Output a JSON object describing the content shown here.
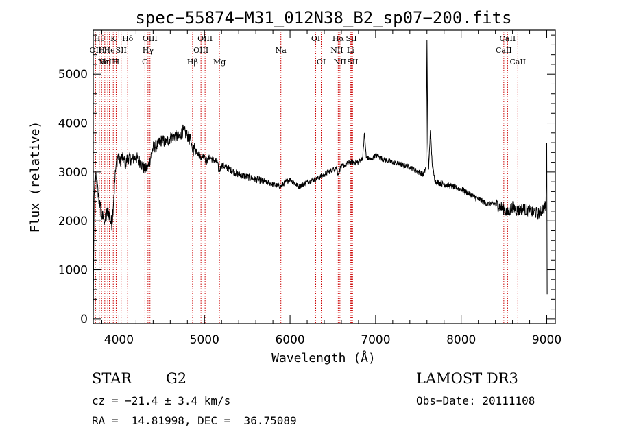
{
  "chart_data": {
    "type": "line",
    "title": "spec−55874−M31_012N38_B2_sp07−200.fits",
    "xlabel": "Wavelength (Å)",
    "ylabel": "Flux (relative)",
    "xlim": [
      3700,
      9100
    ],
    "ylim": [
      -100,
      5900
    ],
    "xticks": [
      4000,
      5000,
      6000,
      7000,
      8000,
      9000
    ],
    "yticks": [
      0,
      1000,
      2000,
      3000,
      4000,
      5000
    ],
    "series": [
      {
        "name": "flux",
        "x": [
          3700,
          3705,
          3710,
          3720,
          3740,
          3760,
          3780,
          3800,
          3820,
          3840,
          3860,
          3880,
          3900,
          3920,
          3940,
          3960,
          3970,
          3990,
          4010,
          4030,
          4060,
          4080,
          4100,
          4150,
          4200,
          4250,
          4300,
          4340,
          4400,
          4450,
          4500,
          4550,
          4600,
          4650,
          4700,
          4750,
          4800,
          4850,
          4861,
          4880,
          4920,
          4960,
          5000,
          5020,
          5060,
          5100,
          5150,
          5170,
          5200,
          5300,
          5400,
          5500,
          5600,
          5700,
          5800,
          5890,
          5950,
          6000,
          6100,
          6200,
          6300,
          6350,
          6400,
          6450,
          6500,
          6540,
          6563,
          6590,
          6650,
          6700,
          6750,
          6800,
          6850,
          6870,
          6890,
          6950,
          7000,
          7100,
          7200,
          7300,
          7400,
          7500,
          7560,
          7590,
          7600,
          7610,
          7620,
          7640,
          7660,
          7680,
          7700,
          7800,
          7900,
          8000,
          8100,
          8200,
          8300,
          8400,
          8500,
          8542,
          8600,
          8662,
          8700,
          8800,
          8900,
          8960,
          8990,
          9000,
          9005
        ],
        "values": [
          0,
          1300,
          2500,
          2900,
          2800,
          2500,
          2300,
          2100,
          2050,
          2000,
          2150,
          2200,
          2000,
          1950,
          2500,
          3000,
          3200,
          3350,
          3200,
          3300,
          3250,
          3150,
          3300,
          3250,
          3300,
          3200,
          3050,
          3100,
          3500,
          3550,
          3650,
          3600,
          3700,
          3750,
          3700,
          3850,
          3750,
          3600,
          3400,
          3500,
          3400,
          3300,
          3350,
          3200,
          3300,
          3250,
          3200,
          3000,
          3150,
          3050,
          2950,
          2900,
          2850,
          2800,
          2750,
          2700,
          2800,
          2850,
          2700,
          2800,
          2850,
          2900,
          2950,
          3000,
          3050,
          3100,
          2950,
          3100,
          3150,
          3200,
          3200,
          3200,
          3300,
          3800,
          3300,
          3250,
          3350,
          3250,
          3200,
          3150,
          3100,
          3000,
          2950,
          3100,
          5700,
          3600,
          3050,
          3850,
          3200,
          2950,
          2800,
          2750,
          2700,
          2650,
          2550,
          2450,
          2350,
          2350,
          2250,
          2150,
          2300,
          2200,
          2250,
          2200,
          2150,
          2250,
          2300,
          3600,
          500
        ]
      }
    ],
    "lines": [
      {
        "wl": 3727,
        "label": "OII",
        "row": 1
      },
      {
        "wl": 3771,
        "label": "Hθ",
        "row": 0
      },
      {
        "wl": 3798,
        "label": "H",
        "row": 1
      },
      {
        "wl": 3835,
        "label": "Hη",
        "row": 2
      },
      {
        "wl": 3869,
        "label": "NeIII",
        "row": 2
      },
      {
        "wl": 3889,
        "label": "He",
        "row": 1
      },
      {
        "wl": 3934,
        "label": "K",
        "row": 0
      },
      {
        "wl": 3968,
        "label": "H",
        "row": 2
      },
      {
        "wl": 4026,
        "label": "SII",
        "row": 1
      },
      {
        "wl": 4102,
        "label": "Hδ",
        "row": 0
      },
      {
        "wl": 4304,
        "label": "G",
        "row": 2
      },
      {
        "wl": 4340,
        "label": "Hγ",
        "row": 1
      },
      {
        "wl": 4363,
        "label": "OIII",
        "row": 0
      },
      {
        "wl": 4861,
        "label": "Hβ",
        "row": 2
      },
      {
        "wl": 4959,
        "label": "OIII",
        "row": 1
      },
      {
        "wl": 5007,
        "label": "OIII",
        "row": 0
      },
      {
        "wl": 5175,
        "label": "Mg",
        "row": 2
      },
      {
        "wl": 5893,
        "label": "Na",
        "row": 1
      },
      {
        "wl": 6300,
        "label": "OI",
        "row": 0
      },
      {
        "wl": 6364,
        "label": "OI",
        "row": 2
      },
      {
        "wl": 6548,
        "label": "NII",
        "row": 1
      },
      {
        "wl": 6563,
        "label": "Hα",
        "row": 0
      },
      {
        "wl": 6583,
        "label": "NII",
        "row": 2
      },
      {
        "wl": 6707,
        "label": "Li",
        "row": 1
      },
      {
        "wl": 6717,
        "label": "SII",
        "row": 0
      },
      {
        "wl": 6731,
        "label": "SII",
        "row": 2
      },
      {
        "wl": 8498,
        "label": "CaII",
        "row": 1
      },
      {
        "wl": 8542,
        "label": "CaII",
        "row": 0
      },
      {
        "wl": 8662,
        "label": "CaII",
        "row": 2
      }
    ]
  },
  "info": {
    "object_class": "STAR",
    "subclass": "G2",
    "survey": "LAMOST DR3",
    "redshift": "cz = −21.4 ± 3.4 km/s",
    "obs_date": "Obs−Date: 20111108",
    "coords": "RA =  14.81998, DEC =  36.75089"
  }
}
